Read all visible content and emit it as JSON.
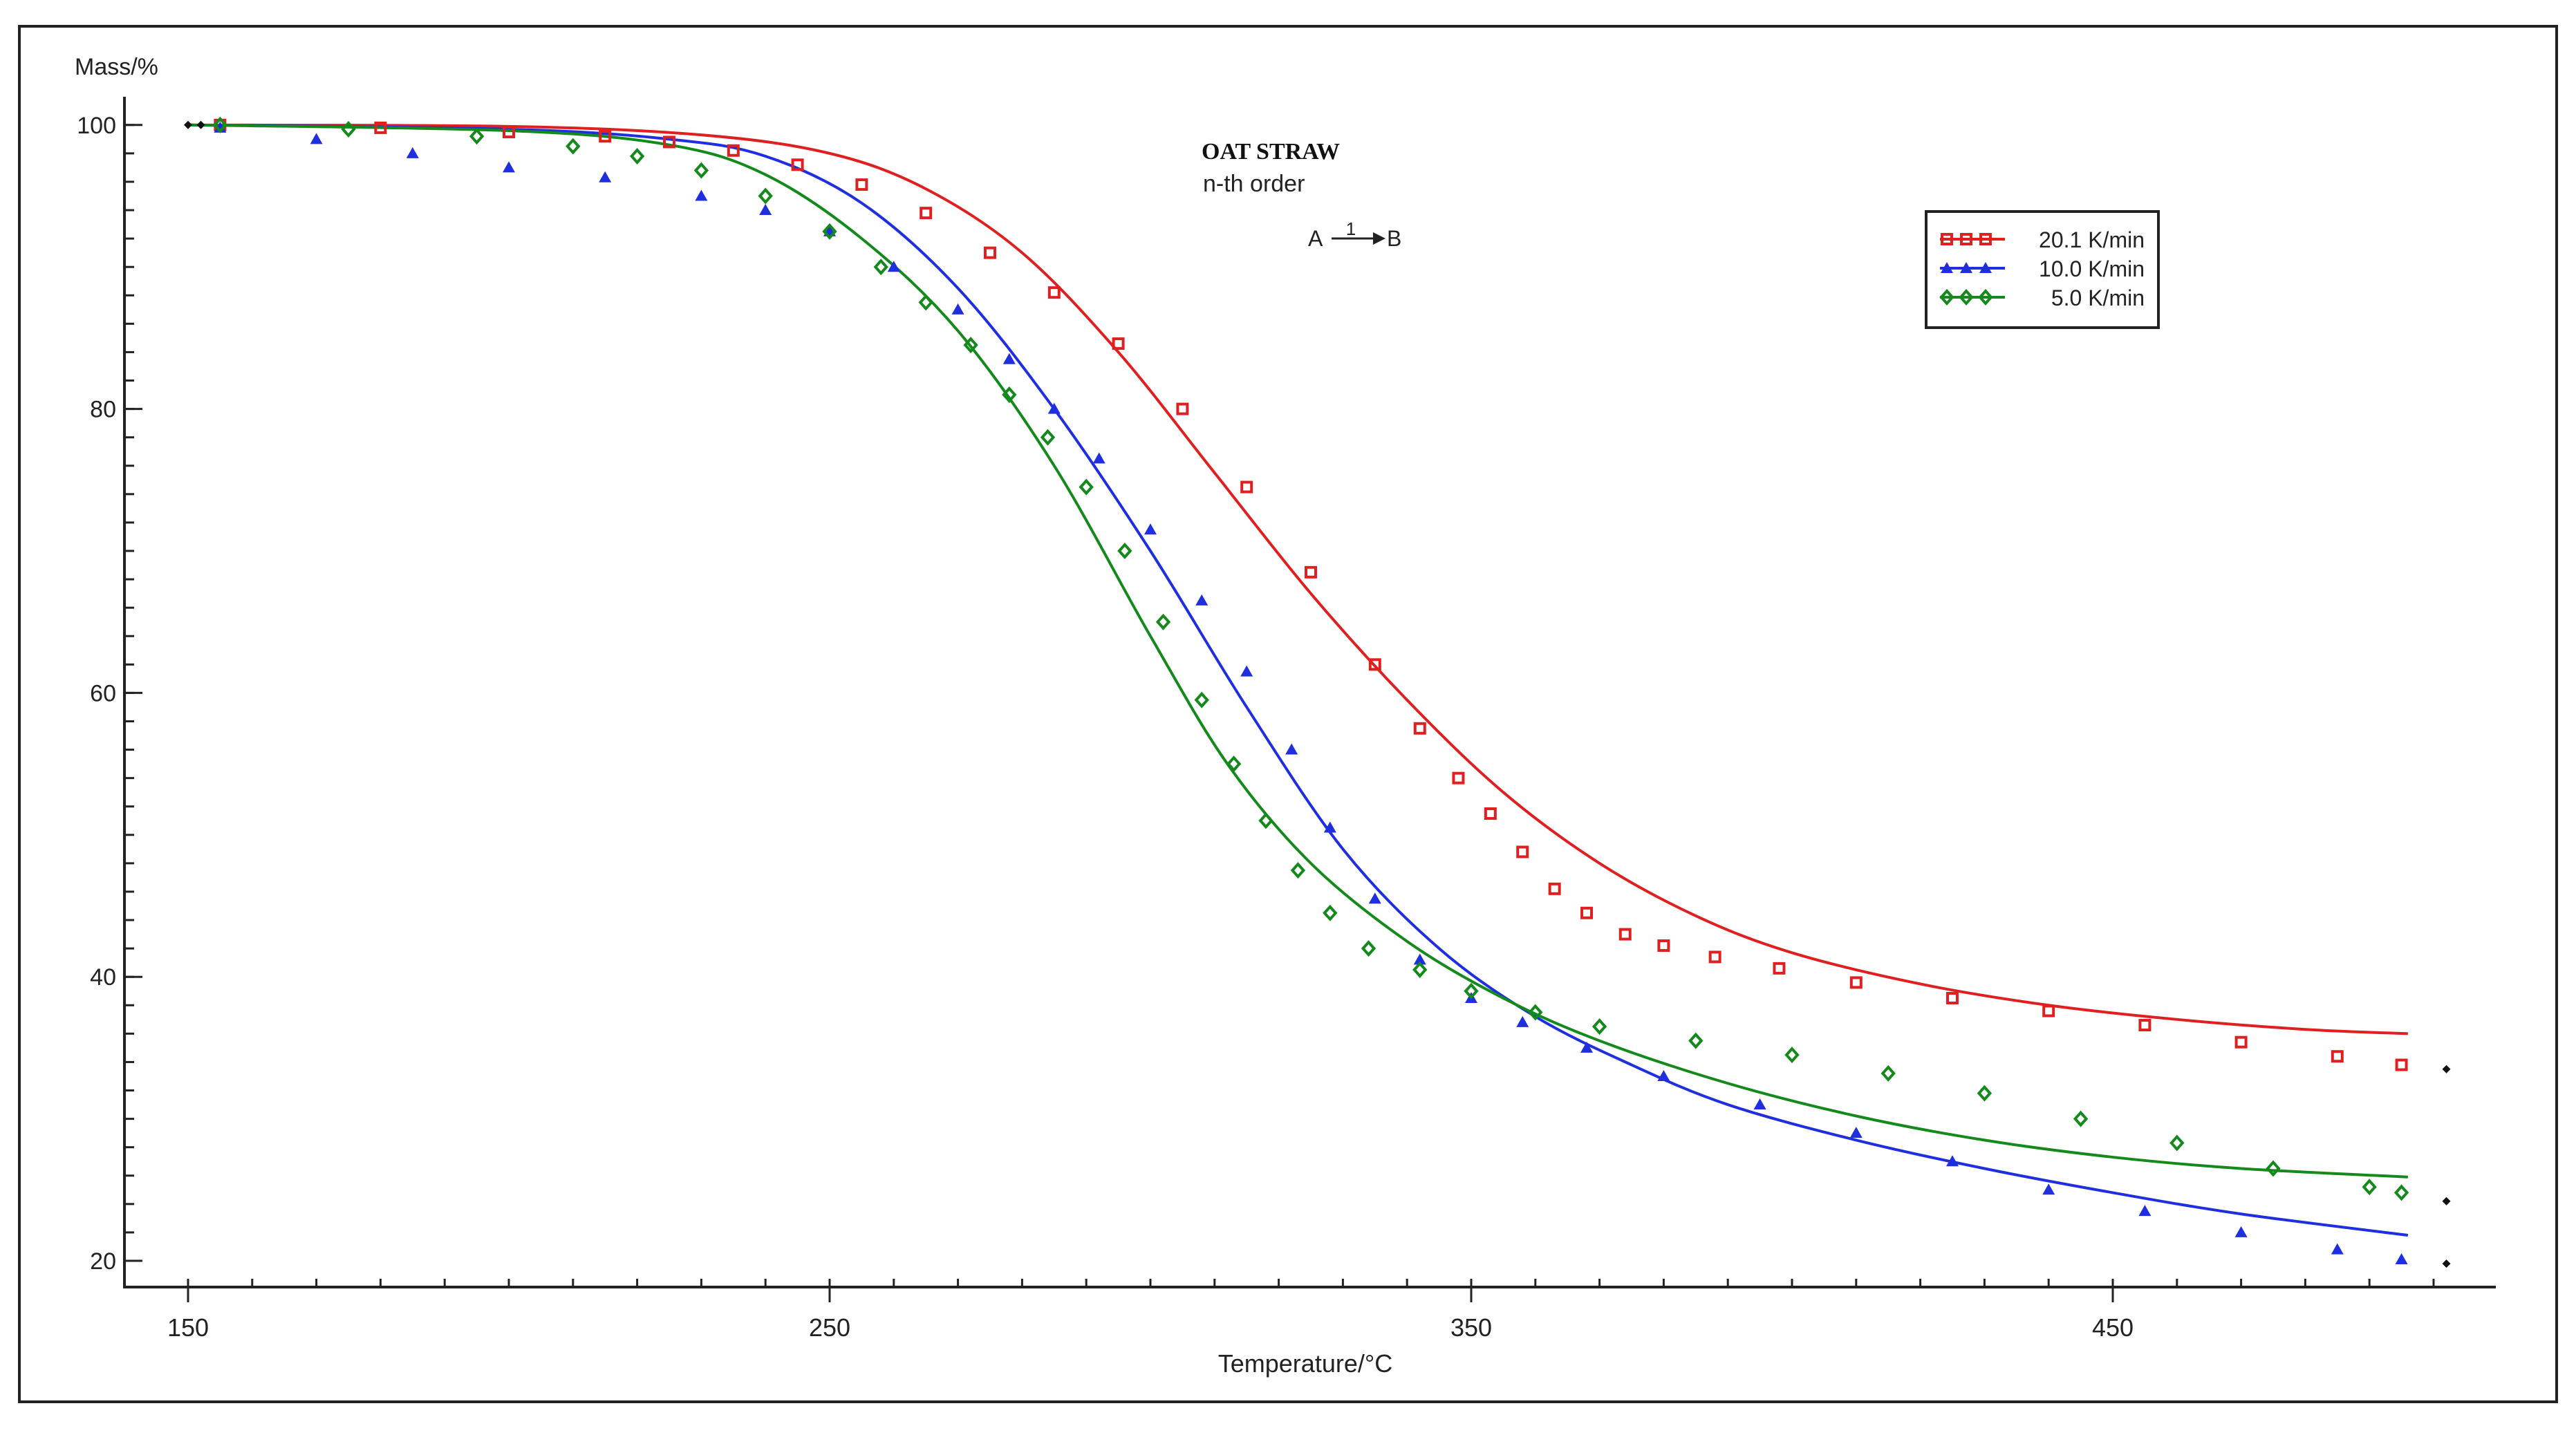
{
  "chart_data": {
    "type": "scatter",
    "title": "OAT STRAW",
    "subtitle": "n-th order",
    "reaction": {
      "from": "A",
      "step": "1",
      "to": "B"
    },
    "ylabel": "Mass/%",
    "xlabel": "Temperature/°C",
    "xlim": [
      150,
      500
    ],
    "ylim": [
      20,
      100
    ],
    "xticks": [
      150,
      250,
      350,
      450
    ],
    "yticks": [
      20,
      40,
      60,
      80,
      100
    ],
    "legend_position": "top-right",
    "colors": {
      "red": "#e02020",
      "blue": "#1f2fe0",
      "green": "#138a1b",
      "axis": "#222222"
    },
    "series": [
      {
        "name": "20.1 K/min",
        "color": "#e02020",
        "marker": "square",
        "points": [
          [
            155,
            100
          ],
          [
            180,
            99.8
          ],
          [
            200,
            99.5
          ],
          [
            215,
            99.2
          ],
          [
            225,
            98.8
          ],
          [
            235,
            98.2
          ],
          [
            245,
            97.2
          ],
          [
            255,
            95.8
          ],
          [
            265,
            93.8
          ],
          [
            275,
            91
          ],
          [
            285,
            88.2
          ],
          [
            295,
            84.6
          ],
          [
            305,
            80
          ],
          [
            315,
            74.5
          ],
          [
            325,
            68.5
          ],
          [
            335,
            62
          ],
          [
            342,
            57.5
          ],
          [
            348,
            54
          ],
          [
            353,
            51.5
          ],
          [
            358,
            48.8
          ],
          [
            363,
            46.2
          ],
          [
            368,
            44.5
          ],
          [
            374,
            43
          ],
          [
            380,
            42.2
          ],
          [
            388,
            41.4
          ],
          [
            398,
            40.6
          ],
          [
            410,
            39.6
          ],
          [
            425,
            38.5
          ],
          [
            440,
            37.6
          ],
          [
            455,
            36.6
          ],
          [
            470,
            35.4
          ],
          [
            485,
            34.4
          ],
          [
            495,
            33.8
          ]
        ],
        "fit": [
          [
            150,
            100
          ],
          [
            200,
            99.9
          ],
          [
            230,
            99.3
          ],
          [
            250,
            98
          ],
          [
            265,
            95.5
          ],
          [
            280,
            91
          ],
          [
            295,
            84
          ],
          [
            310,
            75.5
          ],
          [
            325,
            67
          ],
          [
            340,
            59.5
          ],
          [
            355,
            53
          ],
          [
            370,
            48
          ],
          [
            385,
            44.3
          ],
          [
            400,
            41.7
          ],
          [
            420,
            39.5
          ],
          [
            440,
            38
          ],
          [
            460,
            37
          ],
          [
            480,
            36.3
          ],
          [
            496,
            36
          ]
        ]
      },
      {
        "name": "10.0 K/min",
        "color": "#1f2fe0",
        "marker": "triangle",
        "points": [
          [
            155,
            99.8
          ],
          [
            170,
            99
          ],
          [
            185,
            98
          ],
          [
            200,
            97
          ],
          [
            215,
            96.3
          ],
          [
            230,
            95
          ],
          [
            240,
            94
          ],
          [
            250,
            92.5
          ],
          [
            260,
            90
          ],
          [
            270,
            87
          ],
          [
            278,
            83.5
          ],
          [
            285,
            80
          ],
          [
            292,
            76.5
          ],
          [
            300,
            71.5
          ],
          [
            308,
            66.5
          ],
          [
            315,
            61.5
          ],
          [
            322,
            56
          ],
          [
            328,
            50.5
          ],
          [
            335,
            45.5
          ],
          [
            342,
            41.2
          ],
          [
            350,
            38.5
          ],
          [
            358,
            36.8
          ],
          [
            368,
            35
          ],
          [
            380,
            33
          ],
          [
            395,
            31
          ],
          [
            410,
            29
          ],
          [
            425,
            27
          ],
          [
            440,
            25
          ],
          [
            455,
            23.5
          ],
          [
            470,
            22
          ],
          [
            485,
            20.8
          ],
          [
            495,
            20.1
          ]
        ],
        "fit": [
          [
            150,
            100
          ],
          [
            200,
            99.7
          ],
          [
            225,
            99
          ],
          [
            240,
            97.8
          ],
          [
            255,
            94.5
          ],
          [
            270,
            88.5
          ],
          [
            285,
            80
          ],
          [
            300,
            70
          ],
          [
            315,
            59
          ],
          [
            330,
            49
          ],
          [
            345,
            42
          ],
          [
            360,
            37.2
          ],
          [
            375,
            33.8
          ],
          [
            390,
            31
          ],
          [
            410,
            28.5
          ],
          [
            430,
            26.5
          ],
          [
            450,
            24.8
          ],
          [
            470,
            23.3
          ],
          [
            496,
            21.8
          ]
        ]
      },
      {
        "name": "5.0 K/min",
        "color": "#138a1b",
        "marker": "diamond",
        "points": [
          [
            155,
            100
          ],
          [
            175,
            99.7
          ],
          [
            195,
            99.2
          ],
          [
            210,
            98.5
          ],
          [
            220,
            97.8
          ],
          [
            230,
            96.8
          ],
          [
            240,
            95
          ],
          [
            250,
            92.5
          ],
          [
            258,
            90
          ],
          [
            265,
            87.5
          ],
          [
            272,
            84.5
          ],
          [
            278,
            81
          ],
          [
            284,
            78
          ],
          [
            290,
            74.5
          ],
          [
            296,
            70
          ],
          [
            302,
            65
          ],
          [
            308,
            59.5
          ],
          [
            313,
            55
          ],
          [
            318,
            51
          ],
          [
            323,
            47.5
          ],
          [
            328,
            44.5
          ],
          [
            334,
            42
          ],
          [
            342,
            40.5
          ],
          [
            350,
            39
          ],
          [
            360,
            37.5
          ],
          [
            370,
            36.5
          ],
          [
            385,
            35.5
          ],
          [
            400,
            34.5
          ],
          [
            415,
            33.2
          ],
          [
            430,
            31.8
          ],
          [
            445,
            30
          ],
          [
            460,
            28.3
          ],
          [
            475,
            26.5
          ],
          [
            490,
            25.2
          ],
          [
            495,
            24.8
          ]
        ],
        "fit": [
          [
            150,
            100
          ],
          [
            200,
            99.6
          ],
          [
            225,
            98.6
          ],
          [
            240,
            96.5
          ],
          [
            255,
            92
          ],
          [
            270,
            85.5
          ],
          [
            285,
            76
          ],
          [
            300,
            64
          ],
          [
            312,
            55
          ],
          [
            325,
            48
          ],
          [
            340,
            42.5
          ],
          [
            355,
            38.5
          ],
          [
            370,
            35.5
          ],
          [
            390,
            32.5
          ],
          [
            410,
            30.2
          ],
          [
            430,
            28.5
          ],
          [
            450,
            27.3
          ],
          [
            470,
            26.5
          ],
          [
            496,
            25.9
          ]
        ]
      }
    ],
    "end_markers": [
      [
        150,
        100
      ],
      [
        152,
        100
      ],
      [
        502,
        33.5
      ],
      [
        502,
        24.2
      ],
      [
        502,
        19.8
      ]
    ]
  }
}
